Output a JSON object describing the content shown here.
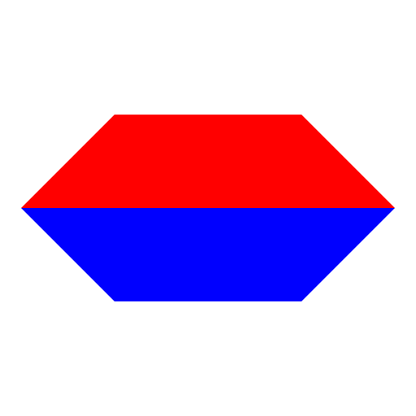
{
  "shape": {
    "top_half_color": "#ff0000",
    "bottom_half_color": "#0000ff",
    "background_color": "#ffffff"
  }
}
